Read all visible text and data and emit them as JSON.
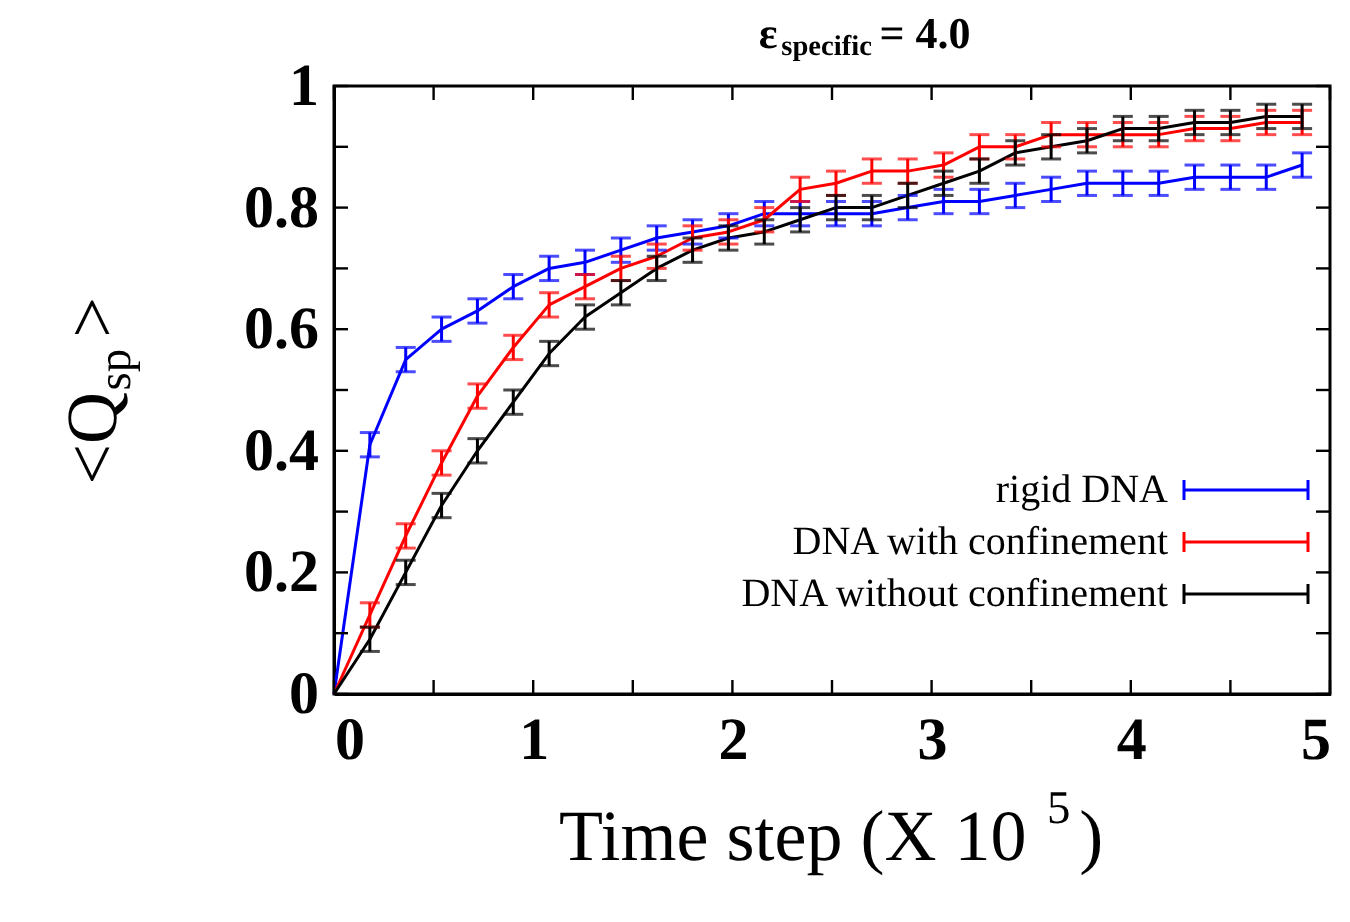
{
  "chart_data": {
    "type": "line",
    "title": "ε$_{specific}$ = 4.0",
    "xlabel": "Time step (X 10$^{5}$)",
    "ylabel": "<Q$_{sp}$>",
    "x": [
      0,
      0.18,
      0.36,
      0.54,
      0.72,
      0.9,
      1.08,
      1.26,
      1.44,
      1.62,
      1.8,
      1.98,
      2.16,
      2.34,
      2.52,
      2.7,
      2.88,
      3.06,
      3.24,
      3.42,
      3.6,
      3.78,
      3.96,
      4.14,
      4.32,
      4.5,
      4.68,
      4.86
    ],
    "series": [
      {
        "name": "rigid DNA",
        "color": "#0000ff",
        "values": [
          0,
          0.41,
          0.55,
          0.6,
          0.63,
          0.67,
          0.7,
          0.71,
          0.73,
          0.75,
          0.76,
          0.77,
          0.79,
          0.79,
          0.79,
          0.79,
          0.8,
          0.81,
          0.81,
          0.82,
          0.83,
          0.84,
          0.84,
          0.84,
          0.85,
          0.85,
          0.85,
          0.87
        ],
        "errors": [
          null,
          0.02,
          0.02,
          0.02,
          0.02,
          0.02,
          0.02,
          0.02,
          0.02,
          0.02,
          0.02,
          0.02,
          0.02,
          0.02,
          0.02,
          0.02,
          0.02,
          0.02,
          0.02,
          0.02,
          0.02,
          0.02,
          0.02,
          0.02,
          0.02,
          0.02,
          0.02,
          0.02
        ]
      },
      {
        "name": "DNA with confinement",
        "color": "#ff0000",
        "values": [
          0,
          0.13,
          0.26,
          0.38,
          0.49,
          0.57,
          0.64,
          0.67,
          0.7,
          0.72,
          0.75,
          0.76,
          0.78,
          0.83,
          0.84,
          0.86,
          0.86,
          0.87,
          0.9,
          0.9,
          0.92,
          0.92,
          0.92,
          0.92,
          0.93,
          0.93,
          0.94,
          0.94
        ],
        "errors": [
          null,
          0.02,
          0.02,
          0.02,
          0.02,
          0.02,
          0.02,
          0.02,
          0.02,
          0.02,
          0.02,
          0.02,
          0.02,
          0.02,
          0.02,
          0.02,
          0.02,
          0.02,
          0.02,
          0.02,
          0.02,
          0.02,
          0.02,
          0.02,
          0.02,
          0.02,
          0.02,
          0.02
        ]
      },
      {
        "name": "DNA without confinement",
        "color": "#000000",
        "values": [
          0,
          0.09,
          0.2,
          0.31,
          0.4,
          0.48,
          0.56,
          0.62,
          0.66,
          0.7,
          0.73,
          0.75,
          0.76,
          0.78,
          0.8,
          0.8,
          0.82,
          0.84,
          0.86,
          0.89,
          0.9,
          0.91,
          0.93,
          0.93,
          0.94,
          0.94,
          0.95,
          0.95
        ],
        "errors": [
          null,
          0.02,
          0.02,
          0.02,
          0.02,
          0.02,
          0.02,
          0.02,
          0.02,
          0.02,
          0.02,
          0.02,
          0.02,
          0.02,
          0.02,
          0.02,
          0.02,
          0.02,
          0.02,
          0.02,
          0.02,
          0.02,
          0.02,
          0.02,
          0.02,
          0.02,
          0.02,
          0.02
        ]
      }
    ],
    "xlim": [
      0,
      5
    ],
    "xticks": [
      0,
      {
        "value": 0.5,
        "label": null
      },
      1,
      {
        "value": 1.5,
        "label": null
      },
      2,
      {
        "value": 2.5,
        "label": null
      },
      3,
      {
        "value": 3.5,
        "label": null
      },
      4,
      {
        "value": 4.5,
        "label": null
      },
      5
    ],
    "ylim": [
      0,
      1
    ],
    "yticks": [
      0,
      {
        "value": 0.1,
        "label": null
      },
      0.2,
      {
        "value": 0.3,
        "label": null
      },
      0.4,
      {
        "value": 0.5,
        "label": null
      },
      0.6,
      {
        "value": 0.7,
        "label": null
      },
      0.8,
      {
        "value": 0.9,
        "label": null
      },
      1
    ],
    "grid": false,
    "legend": "right",
    "marker": "none",
    "line_style": "solid"
  }
}
